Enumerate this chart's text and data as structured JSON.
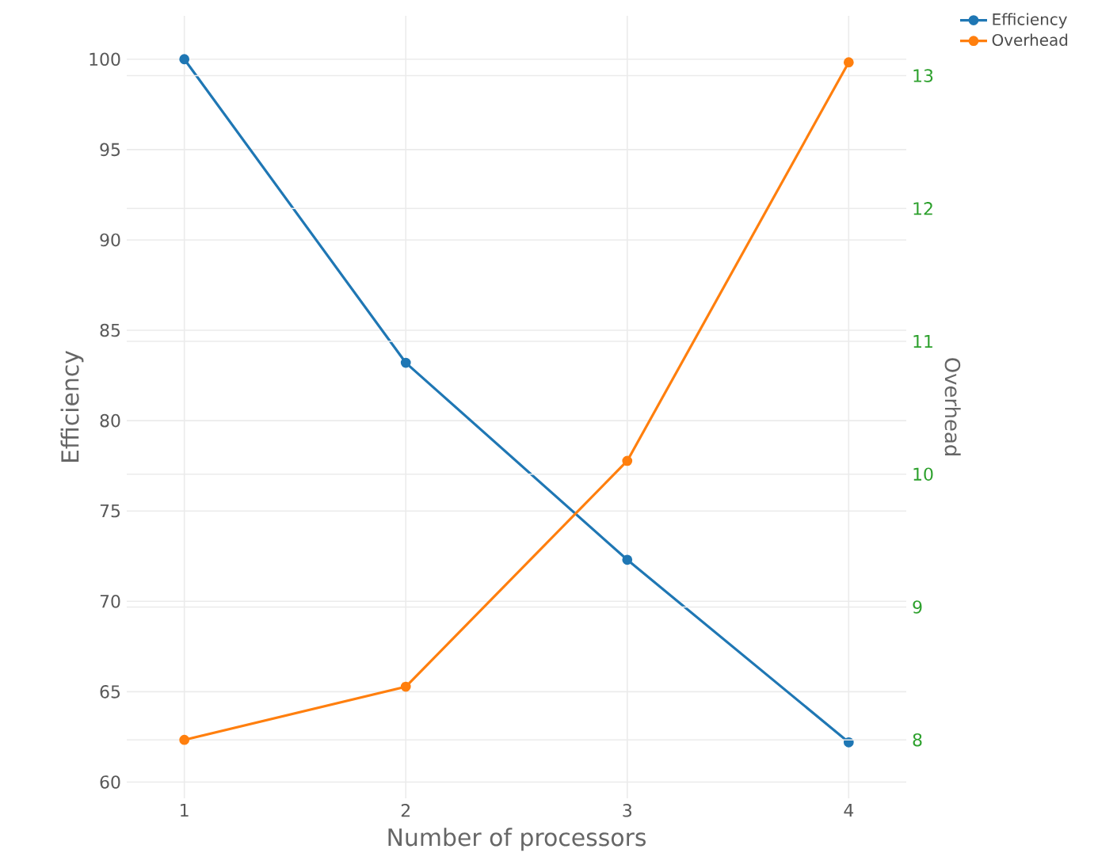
{
  "chart_data": {
    "type": "line",
    "xlabel": "Number of processors",
    "ylabel": "Efficiency",
    "y2label": "Overhead",
    "x": [
      1,
      2,
      3,
      4
    ],
    "series": [
      {
        "name": "Efficiency",
        "color": "#1f77b4",
        "values": [
          100,
          83.2,
          72.3,
          62.2
        ]
      },
      {
        "name": "Overhead",
        "color": "#ff7f0e",
        "axis": "y2",
        "values": [
          8.0,
          8.4,
          10.1,
          13.1
        ]
      }
    ],
    "xlim": [
      0.74,
      4.26
    ],
    "xticks": [
      1,
      2,
      3,
      4
    ],
    "ylim": [
      59.1,
      102.4
    ],
    "yticks": [
      60,
      65,
      70,
      75,
      80,
      85,
      90,
      95,
      100
    ],
    "y2lim": [
      7.56,
      13.45
    ],
    "y2ticks": [
      8,
      9,
      10,
      11,
      12,
      13
    ],
    "grid": true,
    "legend": "top right",
    "marker": "circle",
    "line_style": "solid"
  }
}
